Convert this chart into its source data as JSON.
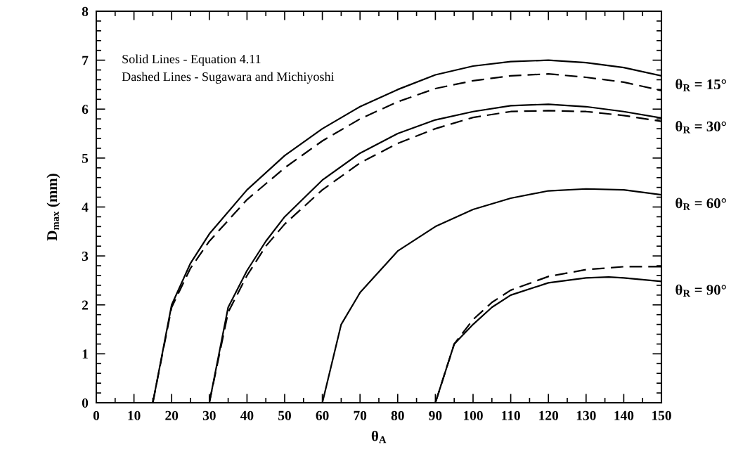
{
  "chart_data": {
    "type": "line",
    "xlabel": "θ$_{A}$",
    "ylabel": "D$_{max}$ (mm)",
    "xlim": [
      0,
      150
    ],
    "ylim": [
      0,
      8
    ],
    "xticks": [
      0,
      10,
      20,
      30,
      40,
      50,
      60,
      70,
      80,
      90,
      100,
      110,
      120,
      130,
      140,
      150
    ],
    "yticks": [
      0,
      1,
      2,
      3,
      4,
      5,
      6,
      7,
      8
    ],
    "grid": false,
    "legend": "right",
    "marker": "none",
    "annotations": [
      "Solid Lines - Equation 4.11",
      "Dashed Lines - Sugawara and Michiyoshi"
    ],
    "series": [
      {
        "name": "θ$_{R}$ = 15°",
        "color": "#000000",
        "line_style": "solid",
        "x": [
          15,
          20,
          25,
          30,
          40,
          50,
          60,
          70,
          80,
          90,
          100,
          110,
          120,
          130,
          140,
          150
        ],
        "values": [
          0,
          2.0,
          2.85,
          3.45,
          4.35,
          5.05,
          5.6,
          6.05,
          6.4,
          6.7,
          6.88,
          6.97,
          7.0,
          6.95,
          6.85,
          6.68
        ]
      },
      {
        "color": "#000000",
        "line_style": "dashed",
        "x": [
          15,
          20,
          25,
          30,
          40,
          50,
          60,
          70,
          80,
          90,
          100,
          110,
          120,
          130,
          140,
          150
        ],
        "values": [
          0,
          1.95,
          2.75,
          3.3,
          4.15,
          4.8,
          5.35,
          5.8,
          6.15,
          6.42,
          6.58,
          6.68,
          6.72,
          6.65,
          6.55,
          6.38
        ]
      },
      {
        "name": "θ$_{R}$ = 30°",
        "color": "#000000",
        "line_style": "solid",
        "x": [
          30,
          35,
          40,
          45,
          50,
          60,
          70,
          80,
          90,
          100,
          110,
          120,
          130,
          140,
          150
        ],
        "values": [
          0,
          1.95,
          2.7,
          3.3,
          3.8,
          4.55,
          5.1,
          5.5,
          5.78,
          5.95,
          6.07,
          6.1,
          6.05,
          5.95,
          5.82
        ]
      },
      {
        "color": "#000000",
        "line_style": "dashed",
        "x": [
          30,
          35,
          40,
          45,
          50,
          60,
          70,
          80,
          90,
          100,
          110,
          120,
          130,
          140,
          150
        ],
        "values": [
          0,
          1.85,
          2.6,
          3.2,
          3.65,
          4.35,
          4.9,
          5.3,
          5.6,
          5.83,
          5.95,
          5.97,
          5.95,
          5.87,
          5.75
        ]
      },
      {
        "name": "θ$_{R}$ = 60°",
        "color": "#000000",
        "line_style": "solid",
        "x": [
          60,
          65,
          70,
          80,
          90,
          100,
          110,
          120,
          130,
          140,
          150
        ],
        "values": [
          0,
          1.6,
          2.25,
          3.1,
          3.6,
          3.95,
          4.18,
          4.33,
          4.37,
          4.35,
          4.25
        ]
      },
      {
        "name": "θ$_{R}$ = 90°",
        "color": "#000000",
        "line_style": "solid",
        "x": [
          90,
          95,
          100,
          105,
          110,
          120,
          130,
          136,
          140,
          150
        ],
        "values": [
          0,
          1.2,
          1.6,
          1.95,
          2.2,
          2.45,
          2.55,
          2.57,
          2.55,
          2.48
        ]
      },
      {
        "color": "#000000",
        "line_style": "dashed",
        "x": [
          90,
          95,
          100,
          105,
          110,
          120,
          130,
          140,
          150
        ],
        "values": [
          0,
          1.2,
          1.7,
          2.05,
          2.3,
          2.58,
          2.72,
          2.78,
          2.78
        ]
      }
    ]
  }
}
